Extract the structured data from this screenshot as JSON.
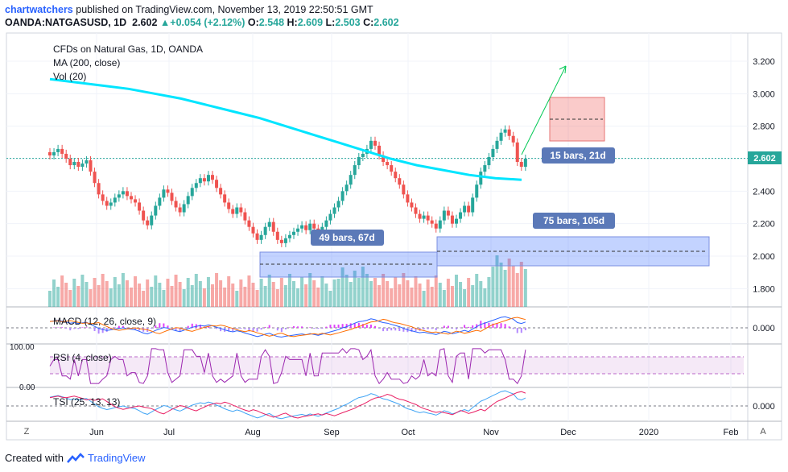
{
  "header": {
    "user": "chartwatchers",
    "published_text": "published on TradingView.com, November 13, 2019 22:50:51 GMT",
    "symbol": "OANDA:NATGASUSD, 1D",
    "price": "2.602",
    "change": "+0.054 (+2.12%)",
    "o_label": "O:",
    "o_value": "2.548",
    "h_label": "H:",
    "h_value": "2.609",
    "l_label": "L:",
    "l_value": "2.503",
    "c_label": "C:",
    "c_value": "2.602"
  },
  "legend": {
    "title": "CFDs on Natural Gas, 1D, OANDA",
    "ma": "MA (200, close)",
    "vol": "Vol (20)",
    "macd": "MACD (12, 26, close, 9)",
    "rsi": "RSI (4, close)",
    "tsi": "TSI (25, 13, 13)"
  },
  "price_axis": [
    "3.200",
    "3.000",
    "2.800",
    "2.600",
    "2.400",
    "2.200",
    "2.000",
    "1.800"
  ],
  "last_price": "2.602",
  "macd_axis": "0.000",
  "rsi_axis": [
    "100.00",
    "0.00"
  ],
  "tsi_axis": "0.000",
  "time_axis": [
    "Jun",
    "Jul",
    "Aug",
    "Sep",
    "Oct",
    "Nov",
    "Dec",
    "2020",
    "Feb"
  ],
  "annotations": {
    "range1": "49 bars, 67d",
    "range2": "75 bars, 105d",
    "range3": "15 bars, 21d"
  },
  "corners": {
    "left": "Z",
    "right": "A"
  },
  "footer": {
    "created_with": "Created with",
    "brand": "TradingView"
  },
  "colors": {
    "up": "#26a69a",
    "down": "#ef5350",
    "ma": "#00e5ff",
    "macd": "#2962ff",
    "signal": "#ff6d00",
    "rsi": "#9c27b0"
  },
  "chart_data": {
    "type": "candlestick",
    "title": "CFDs on Natural Gas, 1D, OANDA",
    "ylim": [
      1.72,
      3.3
    ],
    "closes": [
      2.62,
      2.64,
      2.66,
      2.63,
      2.6,
      2.56,
      2.58,
      2.55,
      2.57,
      2.59,
      2.52,
      2.45,
      2.38,
      2.34,
      2.31,
      2.33,
      2.36,
      2.38,
      2.4,
      2.37,
      2.35,
      2.33,
      2.28,
      2.22,
      2.19,
      2.25,
      2.31,
      2.36,
      2.41,
      2.39,
      2.34,
      2.3,
      2.27,
      2.32,
      2.37,
      2.42,
      2.45,
      2.48,
      2.46,
      2.5,
      2.47,
      2.42,
      2.38,
      2.33,
      2.29,
      2.26,
      2.3,
      2.27,
      2.22,
      2.18,
      2.14,
      2.1,
      2.13,
      2.18,
      2.21,
      2.15,
      2.1,
      2.08,
      2.11,
      2.13,
      2.15,
      2.17,
      2.19,
      2.16,
      2.2,
      2.17,
      2.14,
      2.18,
      2.22,
      2.26,
      2.3,
      2.34,
      2.4,
      2.44,
      2.5,
      2.56,
      2.61,
      2.63,
      2.66,
      2.71,
      2.68,
      2.62,
      2.58,
      2.56,
      2.52,
      2.48,
      2.44,
      2.38,
      2.33,
      2.3,
      2.26,
      2.23,
      2.25,
      2.22,
      2.2,
      2.17,
      2.22,
      2.28,
      2.25,
      2.2,
      2.23,
      2.27,
      2.31,
      2.27,
      2.36,
      2.44,
      2.52,
      2.56,
      2.61,
      2.66,
      2.71,
      2.76,
      2.78,
      2.74,
      2.7,
      2.58,
      2.55,
      2.6
    ],
    "ma200": [
      3.09,
      3.07,
      3.05,
      3.03,
      3.0,
      2.97,
      2.93,
      2.89,
      2.85,
      2.8,
      2.75,
      2.7,
      2.65,
      2.6,
      2.56,
      2.53,
      2.5,
      2.48,
      2.47
    ],
    "macd_axis_value": 0.0,
    "rsi_range": [
      0,
      100
    ],
    "tsi_axis_value": 0.0,
    "x_labels": [
      "Jun",
      "Jul",
      "Aug",
      "Sep",
      "Oct",
      "Nov",
      "Dec",
      "2020",
      "Feb"
    ],
    "price_ticks": [
      3.2,
      3.0,
      2.8,
      2.6,
      2.4,
      2.2,
      2.0,
      1.8
    ],
    "last": 2.602
  }
}
